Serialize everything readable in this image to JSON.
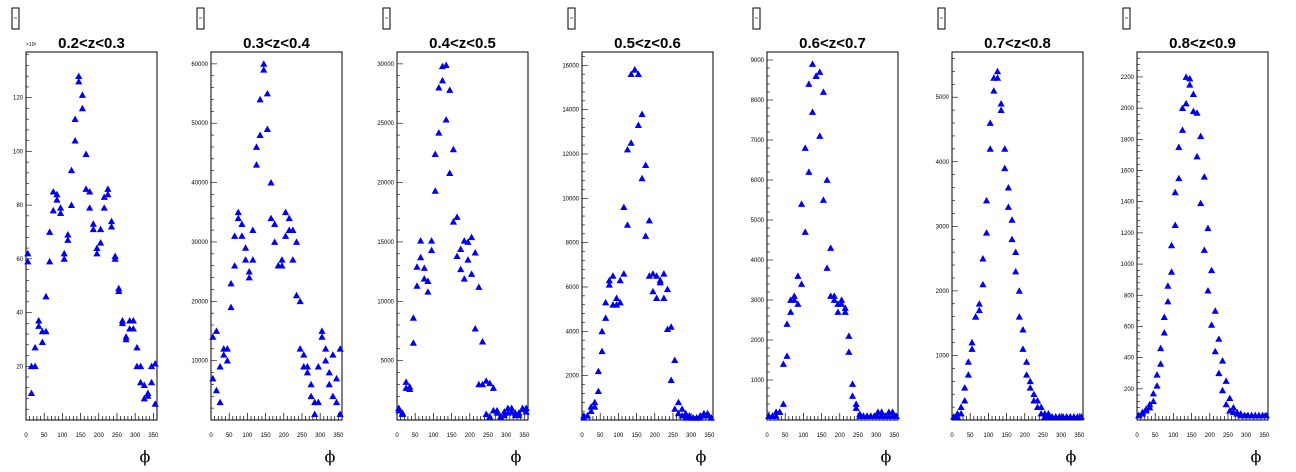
{
  "marker_color": "#0000ee",
  "x_axis_label": "ϕ",
  "x_ticks": [
    "0",
    "50",
    "100",
    "150",
    "200",
    "250",
    "300",
    "350"
  ],
  "chart_data": [
    {
      "type": "scatter",
      "title": "0.2<z<0.3",
      "xlim": [
        0,
        360
      ],
      "ylim": [
        0,
        137000
      ],
      "y_ticks": [
        20000,
        40000,
        60000,
        80000,
        100000,
        120000
      ],
      "y_tick_labels": [
        "20",
        "40",
        "60",
        "80",
        "100",
        "120"
      ],
      "y_multiplier": "×10³",
      "x": [
        5,
        15,
        25,
        35,
        45,
        55,
        65,
        75,
        85,
        95,
        105,
        115,
        125,
        135,
        145,
        155,
        165,
        175,
        185,
        195,
        205,
        215,
        225,
        235,
        245,
        255,
        265,
        275,
        285,
        295,
        305,
        315,
        325,
        335,
        345,
        355,
        5,
        15,
        25,
        35,
        45,
        55,
        65,
        75,
        85,
        95,
        105,
        115,
        125,
        135,
        145,
        155,
        165,
        175,
        185,
        195,
        205,
        215,
        225,
        235,
        245,
        255,
        265,
        275,
        285,
        295,
        305,
        315,
        325,
        335,
        345,
        355
      ],
      "y": [
        62000,
        20000,
        27000,
        37000,
        33000,
        46000,
        70000,
        85000,
        82000,
        79000,
        62000,
        69000,
        93000,
        112000,
        128000,
        116000,
        99000,
        85000,
        73000,
        64000,
        66000,
        83000,
        86000,
        72000,
        61000,
        48000,
        37000,
        31000,
        37000,
        34000,
        27000,
        20000,
        13000,
        9000,
        20000,
        21000,
        59000,
        10000,
        20000,
        35000,
        29000,
        33000,
        59000,
        78000,
        84000,
        77000,
        60000,
        67000,
        80000,
        104000,
        126000,
        121000,
        86000,
        79000,
        71000,
        62000,
        71000,
        79000,
        84000,
        74000,
        60000,
        49000,
        36000,
        30000,
        34000,
        37000,
        20000,
        14000,
        8000,
        10000,
        14000,
        6000
      ]
    },
    {
      "type": "scatter",
      "title": "0.3<z<0.4",
      "xlim": [
        0,
        360
      ],
      "ylim": [
        0,
        62000
      ],
      "y_ticks": [
        10000,
        20000,
        30000,
        40000,
        50000,
        60000
      ],
      "y_tick_labels": [
        "10000",
        "20000",
        "30000",
        "40000",
        "50000",
        "60000"
      ],
      "x": [
        5,
        15,
        25,
        35,
        45,
        55,
        65,
        75,
        85,
        95,
        105,
        115,
        125,
        135,
        145,
        155,
        165,
        175,
        185,
        195,
        205,
        215,
        225,
        235,
        245,
        255,
        265,
        275,
        285,
        295,
        305,
        315,
        325,
        335,
        345,
        355,
        5,
        15,
        25,
        35,
        45,
        55,
        65,
        75,
        85,
        95,
        105,
        115,
        125,
        135,
        145,
        155,
        165,
        175,
        185,
        195,
        205,
        215,
        225,
        235,
        245,
        255,
        265,
        275,
        285,
        295,
        305,
        315,
        325,
        335,
        345,
        355
      ],
      "y": [
        7000,
        15000,
        3000,
        12000,
        10000,
        19000,
        26000,
        35000,
        33000,
        29000,
        25000,
        32000,
        46000,
        54000,
        60000,
        55000,
        40000,
        33000,
        26000,
        27000,
        35000,
        34000,
        32000,
        30000,
        20000,
        11000,
        8000,
        6000,
        3000,
        9000,
        14000,
        12000,
        8000,
        11000,
        7000,
        12000,
        14000,
        5000,
        9000,
        11000,
        12000,
        23000,
        31000,
        34000,
        31000,
        27000,
        24000,
        27000,
        43000,
        48000,
        59000,
        49000,
        34000,
        30000,
        26000,
        26000,
        31000,
        32000,
        27000,
        21000,
        12000,
        9000,
        9000,
        4000,
        1000,
        3000,
        15000,
        10000,
        6000,
        4000,
        3000,
        1000
      ]
    },
    {
      "type": "scatter",
      "title": "0.4<z<0.5",
      "xlim": [
        0,
        360
      ],
      "ylim": [
        0,
        31000
      ],
      "y_ticks": [
        5000,
        10000,
        15000,
        20000,
        25000,
        30000
      ],
      "y_tick_labels": [
        "5000",
        "10000",
        "15000",
        "20000",
        "25000",
        "30000"
      ],
      "x": [
        5,
        15,
        25,
        35,
        45,
        55,
        65,
        75,
        85,
        95,
        105,
        115,
        125,
        135,
        145,
        155,
        165,
        175,
        185,
        195,
        205,
        215,
        225,
        235,
        245,
        255,
        265,
        275,
        285,
        295,
        305,
        315,
        325,
        335,
        345,
        355,
        5,
        15,
        25,
        35,
        45,
        55,
        65,
        75,
        85,
        95,
        105,
        115,
        125,
        135,
        145,
        155,
        165,
        175,
        185,
        195,
        205,
        215,
        225,
        235,
        245,
        255,
        265,
        275,
        285,
        295,
        305,
        315,
        325,
        335,
        345,
        355
      ],
      "y": [
        800,
        600,
        2700,
        2800,
        6500,
        11300,
        13700,
        12800,
        10800,
        14300,
        19300,
        24200,
        28600,
        29900,
        27800,
        22800,
        17100,
        14400,
        11900,
        13500,
        15400,
        14100,
        11200,
        6600,
        3300,
        3100,
        2700,
        800,
        300,
        700,
        1000,
        700,
        400,
        600,
        900,
        1000,
        1000,
        500,
        3200,
        2600,
        8600,
        12900,
        15100,
        11900,
        11700,
        15100,
        22400,
        28000,
        29800,
        25300,
        20800,
        16700,
        13800,
        12700,
        15100,
        15000,
        12300,
        7700,
        3000,
        3000,
        500,
        300,
        800,
        600,
        200,
        400,
        600,
        1000,
        600,
        400,
        1000,
        700
      ]
    },
    {
      "type": "scatter",
      "title": "0.5<z<0.6",
      "xlim": [
        0,
        360
      ],
      "ylim": [
        0,
        16600
      ],
      "y_ticks": [
        2000,
        4000,
        6000,
        8000,
        10000,
        12000,
        14000,
        16000
      ],
      "y_tick_labels": [
        "2000",
        "4000",
        "6000",
        "8000",
        "10000",
        "12000",
        "14000",
        "16000"
      ],
      "x": [
        5,
        15,
        25,
        35,
        45,
        55,
        65,
        75,
        85,
        95,
        105,
        115,
        125,
        135,
        145,
        155,
        165,
        175,
        185,
        195,
        205,
        215,
        225,
        235,
        245,
        255,
        265,
        275,
        285,
        295,
        305,
        315,
        325,
        335,
        345,
        355,
        5,
        15,
        25,
        35,
        45,
        55,
        65,
        75,
        85,
        95,
        105,
        115,
        125,
        135,
        145,
        155,
        165,
        175,
        185,
        195,
        205,
        215,
        225,
        235,
        245,
        255,
        265,
        275,
        285,
        295,
        305,
        315,
        325,
        335,
        345,
        355
      ],
      "y": [
        200,
        200,
        400,
        800,
        1300,
        3100,
        4600,
        6300,
        6500,
        5500,
        5300,
        6600,
        8800,
        12500,
        15800,
        15600,
        13800,
        11500,
        9000,
        6600,
        5500,
        6300,
        6600,
        5900,
        4200,
        2700,
        800,
        500,
        300,
        200,
        100,
        100,
        100,
        200,
        300,
        100,
        100,
        200,
        600,
        600,
        2200,
        4000,
        5300,
        6100,
        5200,
        5200,
        6300,
        9600,
        12200,
        15600,
        15800,
        13300,
        10900,
        8300,
        6500,
        5800,
        6500,
        6200,
        5500,
        4100,
        1800,
        500,
        300,
        200,
        100,
        100,
        100,
        100,
        200,
        300,
        200,
        100
      ]
    },
    {
      "type": "scatter",
      "title": "0.6<z<0.7",
      "xlim": [
        0,
        360
      ],
      "ylim": [
        0,
        9200
      ],
      "y_ticks": [
        1000,
        2000,
        3000,
        4000,
        5000,
        6000,
        7000,
        8000,
        9000
      ],
      "y_tick_labels": [
        "1000",
        "2000",
        "3000",
        "4000",
        "5000",
        "6000",
        "7000",
        "8000",
        "9000"
      ],
      "x": [
        5,
        15,
        25,
        35,
        45,
        55,
        65,
        75,
        85,
        95,
        105,
        115,
        125,
        135,
        145,
        155,
        165,
        175,
        185,
        195,
        205,
        215,
        225,
        235,
        245,
        255,
        265,
        275,
        285,
        295,
        305,
        315,
        325,
        335,
        345,
        355,
        5,
        15,
        25,
        35,
        45,
        55,
        65,
        75,
        85,
        95,
        105,
        115,
        125,
        135,
        145,
        155,
        165,
        175,
        185,
        195,
        205,
        215,
        225,
        235,
        245,
        255,
        265,
        275,
        285,
        295,
        305,
        315,
        325,
        335,
        345,
        355
      ],
      "y": [
        100,
        100,
        100,
        200,
        400,
        1600,
        2700,
        3100,
        2900,
        3400,
        4700,
        6200,
        7700,
        8600,
        8700,
        8200,
        6000,
        4300,
        3100,
        2900,
        3000,
        2800,
        2100,
        900,
        400,
        150,
        100,
        100,
        100,
        100,
        200,
        100,
        100,
        200,
        100,
        100,
        100,
        100,
        200,
        200,
        1400,
        2400,
        3000,
        3000,
        3600,
        5400,
        6800,
        8400,
        8900,
        8600,
        7100,
        5500,
        3800,
        3100,
        3000,
        2700,
        2900,
        2700,
        1700,
        600,
        300,
        100,
        100,
        100,
        100,
        100,
        100,
        200,
        100,
        100,
        200,
        100
      ]
    },
    {
      "type": "scatter",
      "title": "0.7<z<0.8",
      "xlim": [
        0,
        360
      ],
      "ylim": [
        0,
        5700
      ],
      "y_ticks": [
        1000,
        2000,
        3000,
        4000,
        5000
      ],
      "y_tick_labels": [
        "1000",
        "2000",
        "3000",
        "4000",
        "5000"
      ],
      "x": [
        5,
        15,
        25,
        35,
        45,
        55,
        65,
        75,
        85,
        95,
        105,
        115,
        125,
        135,
        145,
        155,
        165,
        175,
        185,
        195,
        205,
        215,
        225,
        235,
        245,
        255,
        265,
        275,
        285,
        295,
        305,
        315,
        325,
        335,
        345,
        355,
        5,
        15,
        25,
        35,
        45,
        55,
        65,
        75,
        85,
        95,
        105,
        115,
        125,
        135,
        145,
        155,
        165,
        175,
        185,
        195,
        205,
        215,
        225,
        235,
        245,
        255,
        265,
        275,
        285,
        295,
        305,
        315,
        325,
        335,
        345,
        355
      ],
      "y": [
        50,
        50,
        100,
        300,
        700,
        1100,
        1600,
        1700,
        2100,
        2900,
        4200,
        5100,
        5400,
        4900,
        4200,
        3600,
        3100,
        2600,
        2000,
        1400,
        900,
        600,
        400,
        300,
        200,
        100,
        100,
        50,
        50,
        50,
        50,
        50,
        50,
        50,
        50,
        50,
        50,
        100,
        200,
        500,
        900,
        1200,
        1600,
        1800,
        2500,
        3400,
        4600,
        5300,
        5300,
        4800,
        3900,
        3300,
        2800,
        2300,
        1600,
        1100,
        700,
        500,
        300,
        200,
        100,
        50,
        50,
        50,
        50,
        50,
        50,
        50,
        50,
        50,
        50,
        50
      ]
    },
    {
      "type": "scatter",
      "title": "0.8<z<0.9",
      "xlim": [
        0,
        360
      ],
      "ylim": [
        0,
        2360
      ],
      "y_ticks": [
        200,
        400,
        600,
        800,
        1000,
        1200,
        1400,
        1600,
        1800,
        2000,
        2200
      ],
      "y_tick_labels": [
        "200",
        "400",
        "600",
        "800",
        "1000",
        "1200",
        "1400",
        "1600",
        "1800",
        "2000",
        "2200"
      ],
      "x": [
        5,
        15,
        25,
        35,
        45,
        55,
        65,
        75,
        85,
        95,
        105,
        115,
        125,
        135,
        145,
        155,
        165,
        175,
        185,
        195,
        205,
        215,
        225,
        235,
        245,
        255,
        265,
        275,
        285,
        295,
        305,
        315,
        325,
        335,
        345,
        355,
        5,
        15,
        25,
        35,
        45,
        55,
        65,
        75,
        85,
        95,
        105,
        115,
        125,
        135,
        145,
        155,
        165,
        175,
        185,
        195,
        205,
        215,
        225,
        235,
        245,
        255,
        265,
        275,
        285,
        295,
        305,
        315,
        325,
        335,
        345,
        355
      ],
      "y": [
        30,
        40,
        60,
        80,
        120,
        220,
        360,
        560,
        760,
        950,
        1250,
        1550,
        1860,
        2030,
        2190,
        2090,
        1970,
        1820,
        1560,
        1230,
        960,
        700,
        520,
        380,
        250,
        140,
        80,
        50,
        40,
        30,
        30,
        30,
        30,
        30,
        30,
        30,
        30,
        50,
        70,
        100,
        170,
        290,
        460,
        660,
        860,
        1120,
        1460,
        1750,
        2000,
        2200,
        2150,
        1980,
        1690,
        1390,
        1090,
        830,
        610,
        440,
        300,
        190,
        100,
        60,
        50,
        40,
        30,
        30,
        30,
        30,
        30,
        30,
        30,
        30
      ]
    }
  ]
}
